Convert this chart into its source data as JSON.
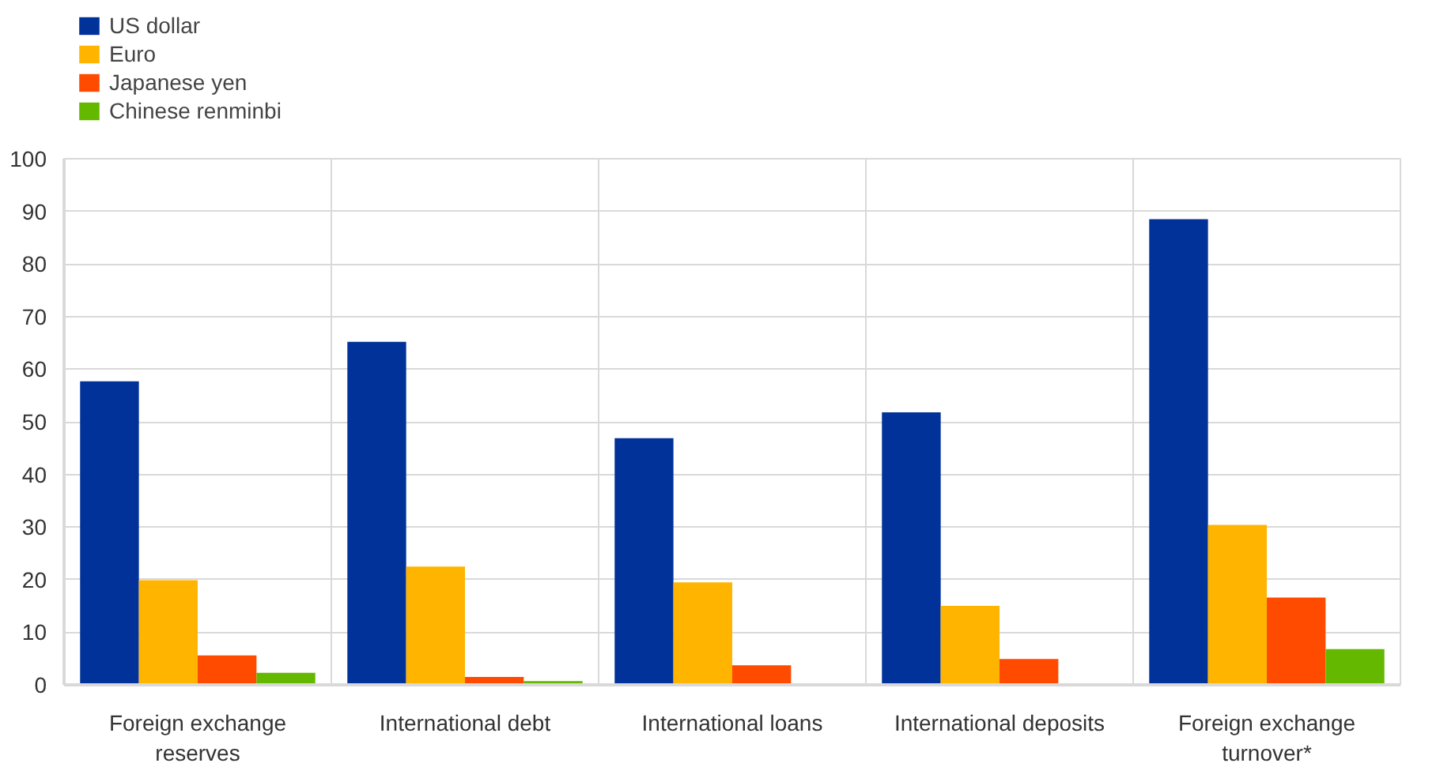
{
  "chart_data": {
    "type": "bar",
    "categories": [
      "Foreign exchange reserves",
      "International debt",
      "International loans",
      "International deposits",
      "Foreign exchange turnover*"
    ],
    "series": [
      {
        "name": "US dollar",
        "color": "#003299",
        "values": [
          57.7,
          65.2,
          46.9,
          51.8,
          88.5
        ]
      },
      {
        "name": "Euro",
        "color": "#ffb400",
        "values": [
          19.9,
          22.5,
          19.5,
          15.0,
          30.4
        ]
      },
      {
        "name": "Japanese yen",
        "color": "#ff4b00",
        "values": [
          5.6,
          1.5,
          3.7,
          4.9,
          16.6
        ]
      },
      {
        "name": "Chinese renminbi",
        "color": "#65b800",
        "values": [
          2.3,
          0.7,
          null,
          null,
          6.8
        ]
      }
    ],
    "ylim": [
      0,
      100
    ],
    "yticks": [
      0,
      10,
      20,
      30,
      40,
      50,
      60,
      70,
      80,
      90,
      100
    ],
    "grid": true,
    "legend": "top left"
  }
}
